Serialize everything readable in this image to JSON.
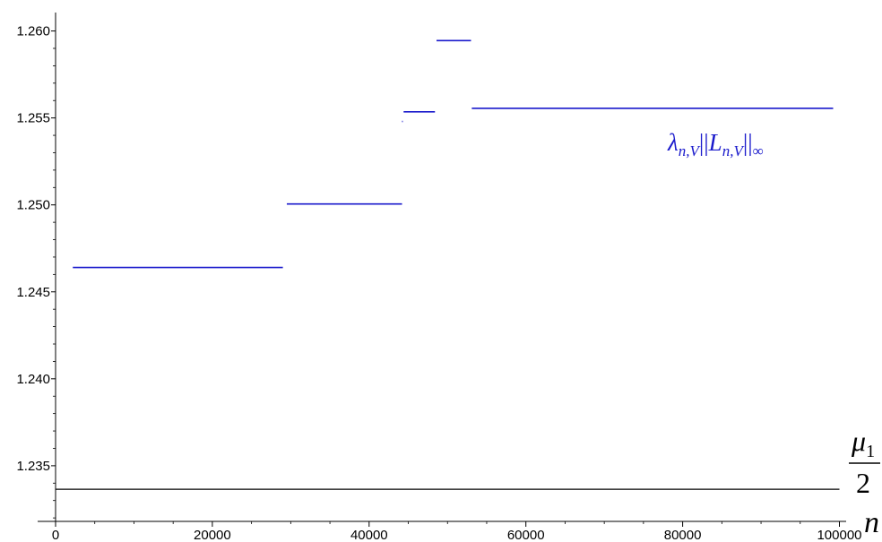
{
  "chart_data": {
    "type": "line",
    "xlabel": "n",
    "ylabel": "",
    "xlim": [
      0,
      100000
    ],
    "ylim": [
      1.2318,
      1.2607
    ],
    "x_ticks": [
      0,
      20000,
      40000,
      60000,
      80000,
      100000
    ],
    "x_tick_labels": [
      "0",
      "20000",
      "40000",
      "60000",
      "80000",
      "100000"
    ],
    "y_ticks": [
      1.235,
      1.24,
      1.245,
      1.25,
      1.255,
      1.26
    ],
    "y_tick_labels": [
      "1.235",
      "1.240",
      "1.245",
      "1.250",
      "1.255",
      "1.260"
    ],
    "series": [
      {
        "name_parts": {
          "lambda": "λ",
          "sub1": "n,V",
          "norm_open": "||",
          "L": "L",
          "sub2": "n,V",
          "norm_close": "||",
          "inf": "∞"
        },
        "color": "#1a1acc",
        "segments": [
          {
            "x": [
              2200,
              29000
            ],
            "y": 1.2464
          },
          {
            "x": [
              29500,
              44200
            ],
            "y": 1.25005
          },
          {
            "x": [
              44200,
              44300
            ],
            "y": 1.2548
          },
          {
            "x": [
              44400,
              48400
            ],
            "y": 1.25535
          },
          {
            "x": [
              48600,
              53000
            ],
            "y": 1.25945
          },
          {
            "x": [
              53100,
              99200
            ],
            "y": 1.25555
          }
        ]
      }
    ],
    "reference_line": {
      "y": 1.23365,
      "color": "#000000",
      "label": {
        "numerator_symbol": "μ",
        "numerator_subscript": "1",
        "denominator": "2"
      }
    },
    "grid": false
  }
}
